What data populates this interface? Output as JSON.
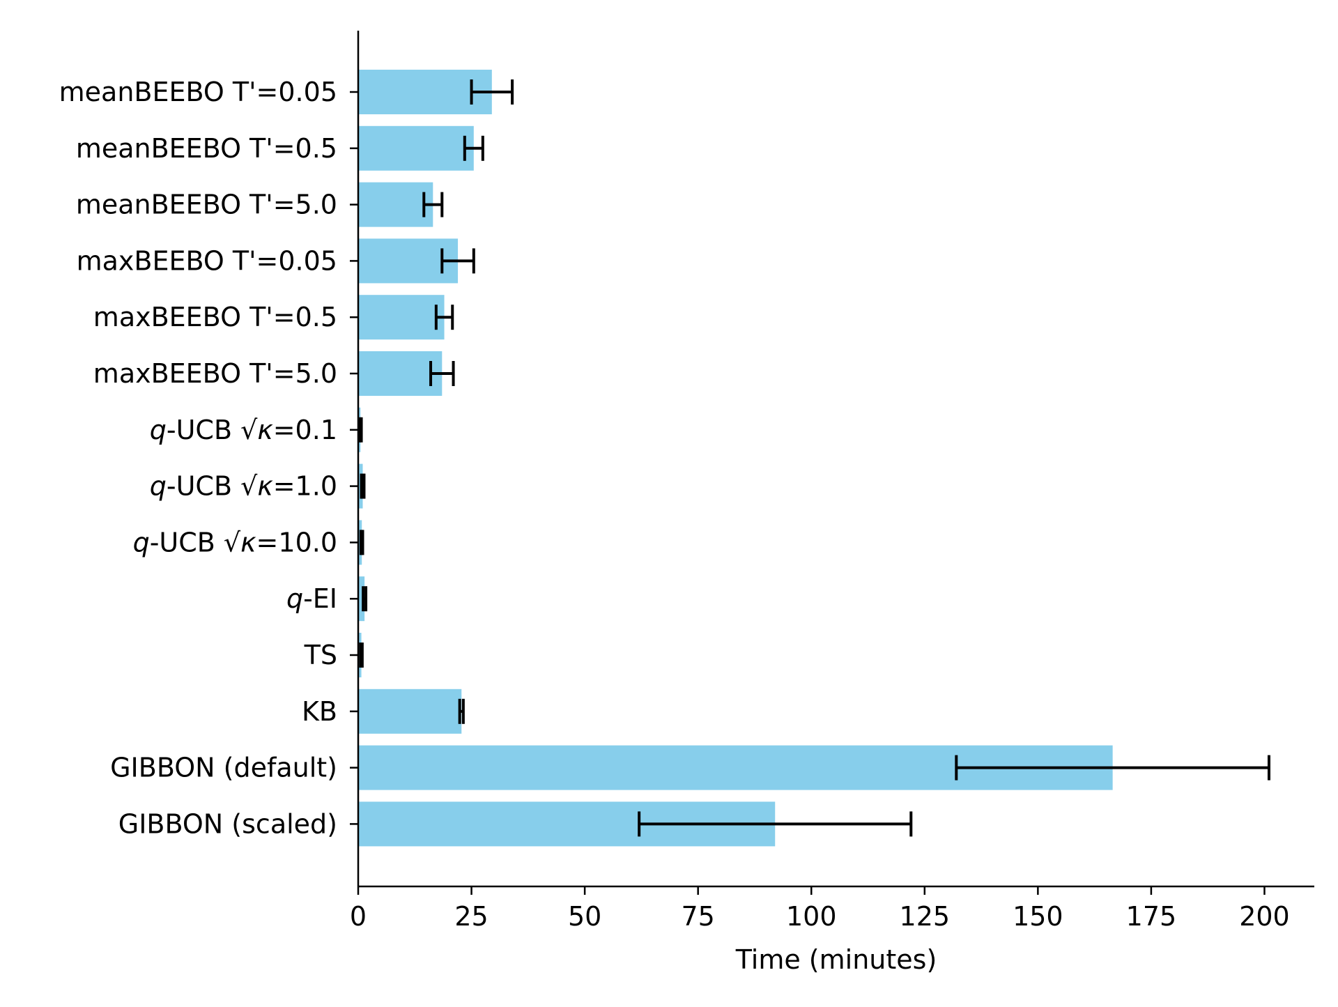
{
  "chart_data": {
    "type": "bar",
    "orientation": "horizontal",
    "title": "",
    "xlabel": "Time (minutes)",
    "ylabel": "",
    "xlim": [
      0,
      211
    ],
    "xticks": [
      0,
      25,
      50,
      75,
      100,
      125,
      150,
      175,
      200
    ],
    "grid": false,
    "bar_color": "#87ceeb",
    "error_color": "#000000",
    "categories": [
      {
        "label": "meanBEEBO T'=0.05"
      },
      {
        "label": "meanBEEBO T'=0.5"
      },
      {
        "label": "meanBEEBO T'=5.0"
      },
      {
        "label": "maxBEEBO T'=0.05"
      },
      {
        "label": "maxBEEBO T'=0.5"
      },
      {
        "label": "maxBEEBO T'=5.0"
      },
      {
        "label_italic": "q",
        "label_rest": "-UCB √",
        "label_greek": "κ",
        "label_tail": "=0.1"
      },
      {
        "label_italic": "q",
        "label_rest": "-UCB √",
        "label_greek": "κ",
        "label_tail": "=1.0"
      },
      {
        "label_italic": "q",
        "label_rest": "-UCB √",
        "label_greek": "κ",
        "label_tail": "=10.0"
      },
      {
        "label_italic": "q",
        "label_rest": "-EI"
      },
      {
        "label": "TS"
      },
      {
        "label": "KB"
      },
      {
        "label": "GIBBON (default)"
      },
      {
        "label": "GIBBON (scaled)"
      }
    ],
    "values": [
      29.5,
      25.5,
      16.5,
      22.0,
      19.0,
      18.5,
      0.5,
      1.0,
      0.8,
      1.4,
      0.7,
      22.8,
      166.5,
      92.0
    ],
    "errors": [
      4.5,
      2.0,
      2.0,
      3.5,
      1.8,
      2.5,
      0.2,
      0.3,
      0.2,
      0.3,
      0.2,
      0.4,
      34.5,
      30.0
    ]
  }
}
